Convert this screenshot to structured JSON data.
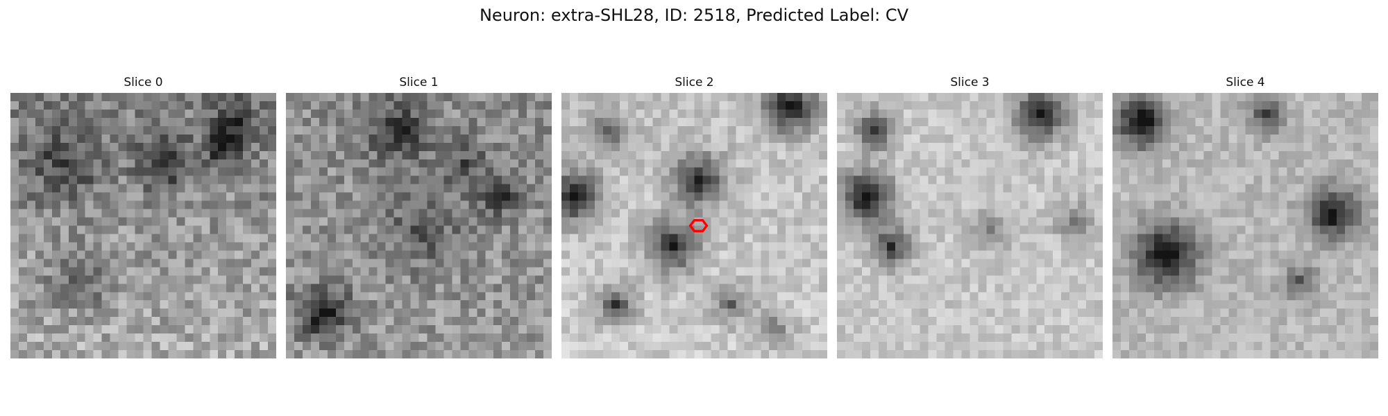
{
  "figure": {
    "title": "Neuron: extra-SHL28, ID: 2518, Predicted Label: CV"
  },
  "panels": [
    {
      "title": "Slice 0"
    },
    {
      "title": "Slice 1"
    },
    {
      "title": "Slice 2"
    },
    {
      "title": "Slice 3"
    },
    {
      "title": "Slice 4"
    }
  ],
  "grid_size": 32,
  "marker": {
    "panel_index": 2,
    "shape": "hexagon",
    "color": "#ff0000"
  }
}
